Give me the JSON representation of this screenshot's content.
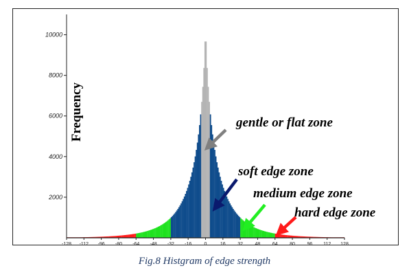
{
  "caption": "Fig.8 Histgram of edge strength",
  "chart_data": {
    "type": "bar",
    "title": "",
    "xlabel": "",
    "ylabel": "Frequency",
    "xlim": [
      -128,
      128
    ],
    "ylim": [
      0,
      11000
    ],
    "y_ticks": [
      2000,
      4000,
      6000,
      8000,
      10000
    ],
    "y_tick_labels": [
      "2000",
      "4000",
      "6000",
      "8000",
      "10000"
    ],
    "x_ticks": [
      -128,
      -112,
      -96,
      -80,
      -64,
      -48,
      -32,
      -16,
      0,
      16,
      32,
      48,
      64,
      80,
      96,
      112,
      128
    ],
    "x_tick_labels": [
      "-128",
      "-112",
      "-96",
      "-80",
      "-64",
      "-48",
      "-32",
      "-16",
      "0",
      "16",
      "32",
      "48",
      "64",
      "80",
      "96",
      "112",
      "128"
    ],
    "grid": false,
    "legend": "none",
    "zones": [
      {
        "label": "gentle or flat zone",
        "range": [
          -4,
          4
        ],
        "color": "#b4b4b4",
        "arrow_color": "#808080"
      },
      {
        "label": "soft edge zone",
        "range": [
          -32,
          32
        ],
        "color": "#0f4c8c",
        "arrow_color": "#0a1a6e"
      },
      {
        "label": "medium edge zone",
        "range": [
          -64,
          64
        ],
        "color": "#1fe21f",
        "arrow_color": "#22ee22"
      },
      {
        "label": "hard edge zone",
        "range": [
          -128,
          128
        ],
        "color": "#ff1a1a",
        "arrow_color": "#ff1a1a"
      }
    ],
    "distribution": {
      "peak_x": 0,
      "peak_value": 10900,
      "decay_scale": 9.5,
      "shape_exponent": 0.72,
      "bin_width": 1
    }
  }
}
